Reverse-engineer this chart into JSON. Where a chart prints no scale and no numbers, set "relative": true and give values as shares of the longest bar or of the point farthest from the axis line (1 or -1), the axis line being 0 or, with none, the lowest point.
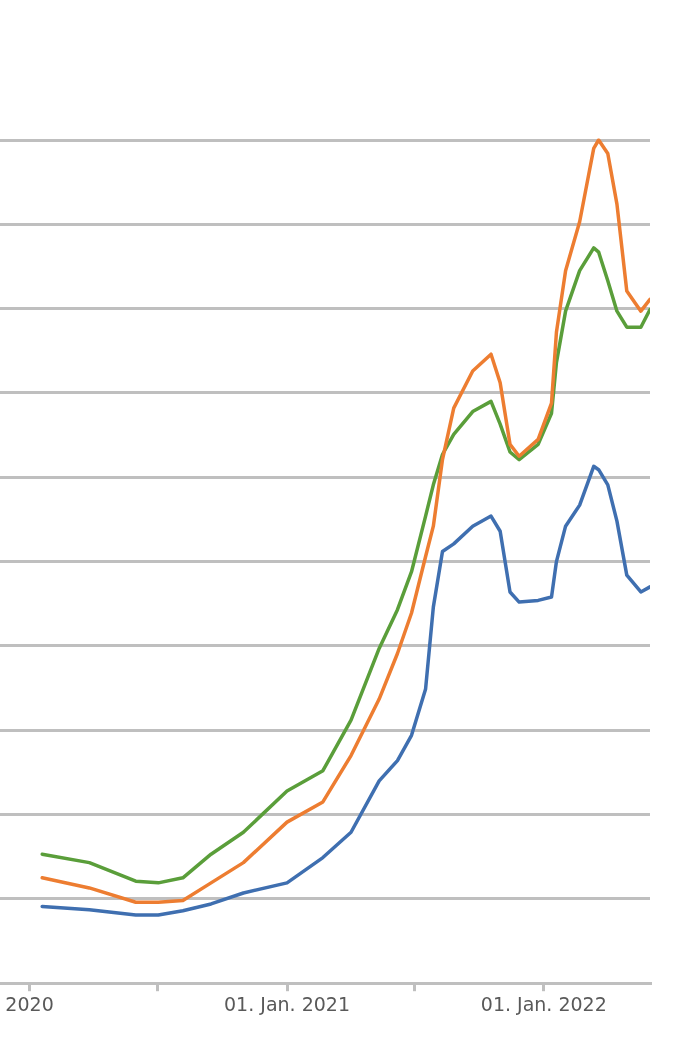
{
  "chart_data": {
    "type": "line",
    "relative": true,
    "grid": "y",
    "legend": false,
    "marker": "none",
    "line_style": "solid",
    "x": [
      "2020-01-19",
      "2020-03-26",
      "2020-05-31",
      "2020-07-02",
      "2020-08-06",
      "2020-09-15",
      "2020-10-31",
      "2021-01-01",
      "2021-02-21",
      "2021-04-02",
      "2021-05-12",
      "2021-06-07",
      "2021-06-27",
      "2021-07-17",
      "2021-07-28",
      "2021-08-10",
      "2021-08-26",
      "2021-09-22",
      "2021-10-18",
      "2021-10-31",
      "2021-11-14",
      "2021-11-27",
      "2021-12-24",
      "2022-01-12",
      "2022-01-19",
      "2022-02-01",
      "2022-02-21",
      "2022-03-13",
      "2022-03-20",
      "2022-04-02",
      "2022-04-15",
      "2022-04-29",
      "2022-05-19",
      "2022-06-01"
    ],
    "xlim": [
      "2019-11-20",
      "2022-06-01"
    ],
    "xticks": [
      {
        "value": "2020-01-01",
        "label": "2020"
      },
      {
        "value": "2020-07-01",
        "label": null
      },
      {
        "value": "2021-01-01",
        "label": "01. Jan. 2021"
      },
      {
        "value": "2021-07-01",
        "label": null
      },
      {
        "value": "2022-01-01",
        "label": "01. Jan. 2022"
      }
    ],
    "series": [
      {
        "color": "#3f6fb0",
        "values": [
          0.091,
          0.087,
          0.081,
          0.081,
          0.086,
          0.094,
          0.107,
          0.119,
          0.149,
          0.179,
          0.24,
          0.264,
          0.294,
          0.349,
          0.446,
          0.512,
          0.521,
          0.542,
          0.554,
          0.536,
          0.464,
          0.452,
          0.454,
          0.458,
          0.5,
          0.542,
          0.567,
          0.613,
          0.609,
          0.591,
          0.548,
          0.484,
          0.464,
          0.47
        ]
      },
      {
        "color": "#ed7d31",
        "values": [
          0.125,
          0.113,
          0.096,
          0.096,
          0.098,
          0.119,
          0.143,
          0.191,
          0.215,
          0.27,
          0.337,
          0.391,
          0.439,
          0.506,
          0.542,
          0.621,
          0.682,
          0.726,
          0.746,
          0.712,
          0.639,
          0.625,
          0.645,
          0.688,
          0.772,
          0.845,
          0.903,
          0.99,
          1,
          0.984,
          0.924,
          0.821,
          0.797,
          0.811
        ]
      },
      {
        "color": "#5a9e3a",
        "values": [
          0.153,
          0.143,
          0.121,
          0.119,
          0.125,
          0.153,
          0.179,
          0.228,
          0.252,
          0.312,
          0.397,
          0.443,
          0.488,
          0.554,
          0.591,
          0.627,
          0.651,
          0.678,
          0.69,
          0.663,
          0.63,
          0.621,
          0.639,
          0.676,
          0.736,
          0.797,
          0.845,
          0.872,
          0.867,
          0.833,
          0.797,
          0.778,
          0.778,
          0.799
        ]
      }
    ]
  }
}
